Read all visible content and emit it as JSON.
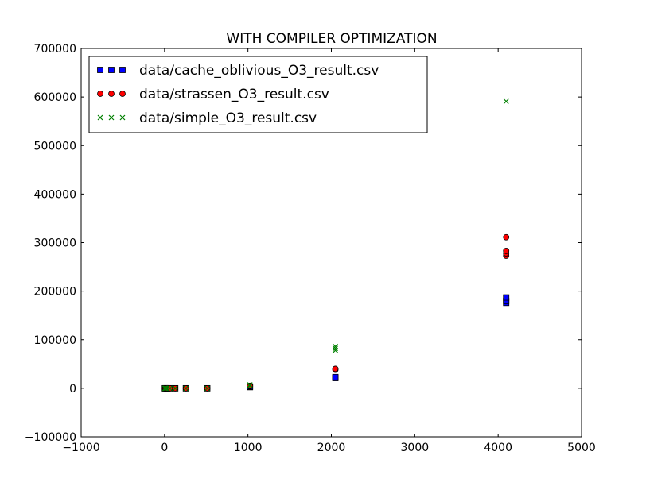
{
  "chart_data": {
    "type": "scatter",
    "title": "WITH COMPILER OPTIMIZATION",
    "xlabel": "",
    "ylabel": "",
    "xlim": [
      -1000,
      5000
    ],
    "ylim": [
      -100000,
      700000
    ],
    "xticks": [
      -1000,
      0,
      1000,
      2000,
      3000,
      4000,
      5000
    ],
    "yticks": [
      -100000,
      0,
      100000,
      200000,
      300000,
      400000,
      500000,
      600000,
      700000
    ],
    "xtick_labels": [
      "−1000",
      "0",
      "1000",
      "2000",
      "3000",
      "4000",
      "5000"
    ],
    "ytick_labels": [
      "−100000",
      "0",
      "100000",
      "200000",
      "300000",
      "400000",
      "500000",
      "600000",
      "700000"
    ],
    "grid": false,
    "legend_position": "top-left",
    "series": [
      {
        "name": "data/cache_oblivious_O3_result.csv",
        "marker": "square",
        "color": "#0000ff",
        "points": [
          [
            4,
            0
          ],
          [
            8,
            0
          ],
          [
            16,
            0
          ],
          [
            32,
            0
          ],
          [
            64,
            0
          ],
          [
            128,
            0
          ],
          [
            256,
            0
          ],
          [
            512,
            0
          ],
          [
            1024,
            2500
          ],
          [
            1024,
            3500
          ],
          [
            2048,
            21000
          ],
          [
            2048,
            23000
          ],
          [
            4096,
            176000
          ],
          [
            4096,
            180000
          ],
          [
            4096,
            187000
          ]
        ]
      },
      {
        "name": "data/strassen_O3_result.csv",
        "marker": "circle",
        "color": "#ff0000",
        "points": [
          [
            4,
            0
          ],
          [
            8,
            0
          ],
          [
            16,
            0
          ],
          [
            32,
            0
          ],
          [
            64,
            0
          ],
          [
            128,
            0
          ],
          [
            256,
            0
          ],
          [
            512,
            0
          ],
          [
            1024,
            4000
          ],
          [
            1024,
            5000
          ],
          [
            2048,
            38000
          ],
          [
            2048,
            40000
          ],
          [
            4096,
            273000
          ],
          [
            4096,
            278000
          ],
          [
            4096,
            283000
          ],
          [
            4096,
            311000
          ]
        ]
      },
      {
        "name": "data/simple_O3_result.csv",
        "marker": "x",
        "color": "#008000",
        "points": [
          [
            4,
            0
          ],
          [
            8,
            0
          ],
          [
            16,
            0
          ],
          [
            32,
            0
          ],
          [
            64,
            0
          ],
          [
            128,
            0
          ],
          [
            256,
            0
          ],
          [
            512,
            0
          ],
          [
            1024,
            5000
          ],
          [
            1024,
            7000
          ],
          [
            2048,
            78000
          ],
          [
            2048,
            82000
          ],
          [
            2048,
            86000
          ],
          [
            4096,
            591000
          ]
        ]
      }
    ]
  }
}
